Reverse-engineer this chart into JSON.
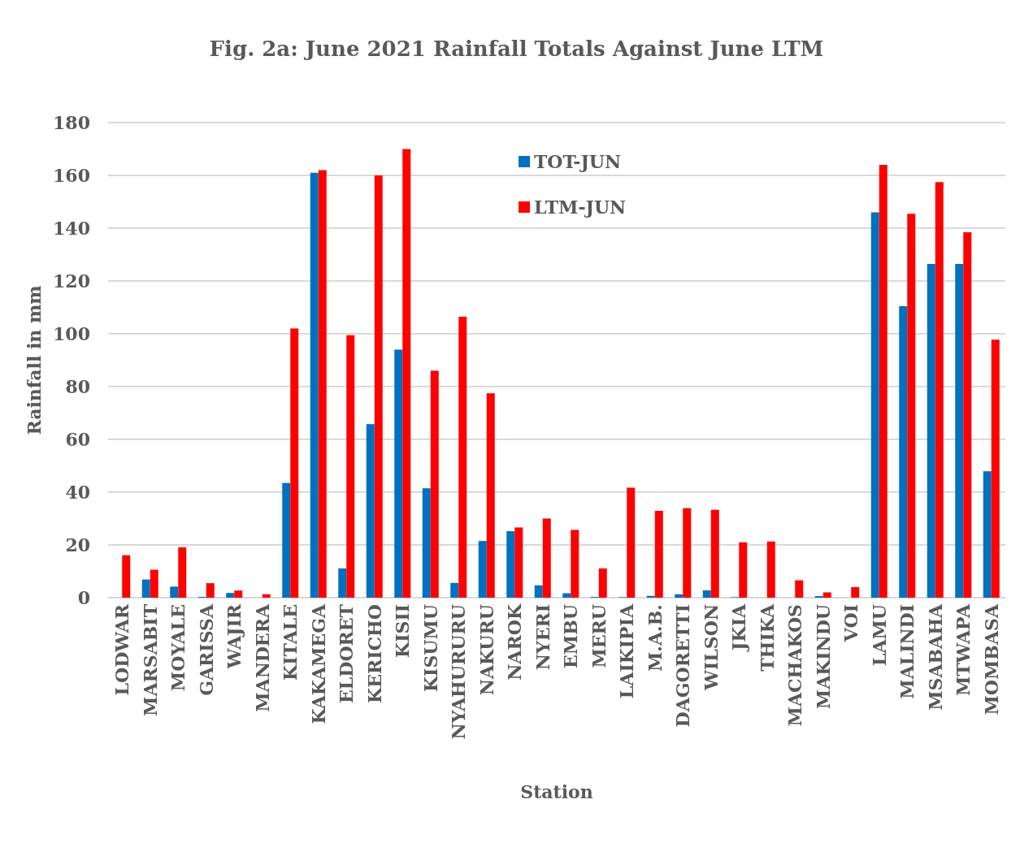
{
  "chart_data": {
    "type": "bar",
    "title": "Fig. 2a: June 2021 Rainfall Totals Against June LTM",
    "xlabel": "Station",
    "ylabel": "Rainfall in mm",
    "categories": [
      "LODWAR",
      "MARSABIT",
      "MOYALE",
      "GARISSA",
      "WAJIR",
      "MANDERA",
      "KITALE",
      "KAKAMEGA",
      "ELDORET",
      "KERICHO",
      "KISII",
      "KISUMU",
      "NYAHURURU",
      "NAKURU",
      "NAROK",
      "NYERI",
      "EMBU",
      "MERU",
      "LAIKIPIA",
      "M.A.B.",
      "DAGORETTI",
      "WILSON",
      "JKIA",
      "THIKA",
      "MACHAKOS",
      "MAKINDU",
      "VOI",
      "LAMU",
      "MALINDI",
      "MSABAHA",
      "MTWAPA",
      "MOMBASA"
    ],
    "series": [
      {
        "name": "TOT-JUN",
        "color": "#0070c0",
        "values": [
          0,
          6.9,
          4.2,
          0.3,
          1.8,
          0,
          43.5,
          161,
          11.1,
          65.8,
          94,
          41.5,
          5.6,
          21.5,
          25.2,
          4.7,
          1.7,
          0.3,
          0.2,
          0.7,
          1.3,
          2.8,
          0.2,
          0,
          0,
          0.6,
          0,
          146,
          110.5,
          126.5,
          126.5,
          47.9
        ]
      },
      {
        "name": "LTM-JUN",
        "color": "#ff0000",
        "values": [
          16.1,
          10.6,
          19.1,
          5.5,
          2.7,
          1.3,
          102,
          162,
          99.5,
          160,
          170,
          86,
          106.5,
          77.5,
          26.6,
          30,
          25.7,
          11.1,
          41.7,
          32.9,
          33.9,
          33.3,
          21,
          21.3,
          6.6,
          2,
          4,
          164,
          145.5,
          157.5,
          138.5,
          97.8
        ]
      }
    ],
    "ylim": [
      0,
      180
    ],
    "yticks": [
      0,
      20,
      40,
      60,
      80,
      100,
      120,
      140,
      160,
      180
    ],
    "grid": "y",
    "legend": "top"
  }
}
